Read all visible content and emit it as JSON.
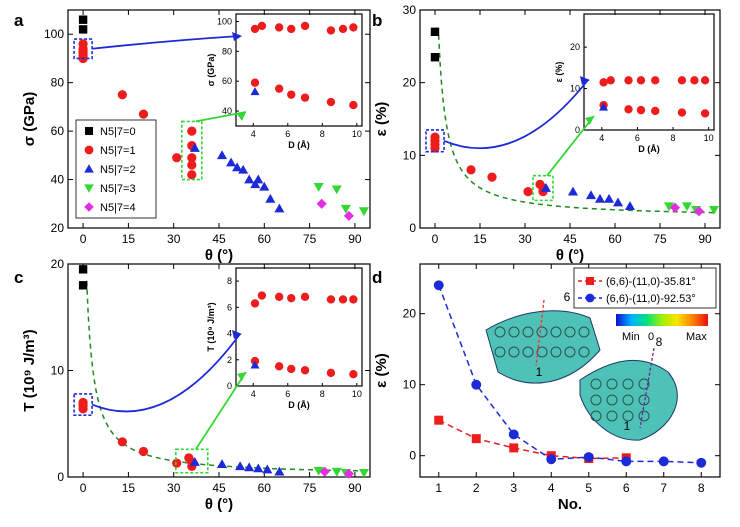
{
  "chart_data": [
    {
      "panel": "a",
      "type": "scatter",
      "xlabel": "θ (°)",
      "ylabel": "σ (GPa)",
      "xlim": [
        -5,
        95
      ],
      "ylim": [
        20,
        110
      ],
      "xticks": [
        "0",
        "15",
        "30",
        "45",
        "60",
        "75",
        "90"
      ],
      "yticks": [
        "20",
        "40",
        "60",
        "80",
        "100"
      ],
      "legend": "bottom-left",
      "series": [
        {
          "name": "N5|7=0",
          "marker": "square",
          "color": "#000000",
          "points": [
            [
              0,
              106
            ],
            [
              0,
              102
            ]
          ]
        },
        {
          "name": "N5|7=1",
          "marker": "circle",
          "color": "#ee1c1c",
          "points": [
            [
              0,
              96
            ],
            [
              0,
              94
            ],
            [
              0,
              93
            ],
            [
              0,
              92
            ],
            [
              0,
              91
            ],
            [
              0,
              90
            ],
            [
              13,
              75
            ],
            [
              20,
              67
            ],
            [
              31,
              49
            ],
            [
              36,
              60
            ],
            [
              36,
              54
            ],
            [
              36,
              49
            ],
            [
              36,
              46
            ],
            [
              36,
              42
            ]
          ]
        },
        {
          "name": "N5|7=2",
          "marker": "triangle",
          "color": "#1c2ad8",
          "points": [
            [
              37,
              53
            ],
            [
              46,
              50
            ],
            [
              49,
              47
            ],
            [
              51,
              45
            ],
            [
              53,
              44
            ],
            [
              55,
              40
            ],
            [
              57,
              38
            ],
            [
              58,
              40
            ],
            [
              60,
              37
            ],
            [
              62,
              32
            ],
            [
              65,
              28
            ]
          ]
        },
        {
          "name": "N5|7=3",
          "marker": "triangle-down",
          "color": "#33d633",
          "points": [
            [
              78,
              37
            ],
            [
              84,
              36
            ],
            [
              87,
              28
            ],
            [
              93,
              27
            ]
          ]
        },
        {
          "name": "N5|7=4",
          "marker": "diamond",
          "color": "#e22de2",
          "points": [
            [
              79,
              30
            ],
            [
              88,
              25
            ]
          ]
        }
      ],
      "inset": {
        "xlabel": "D (Å)",
        "ylabel": "σ (GPa)",
        "xlim": [
          3,
          10.3
        ],
        "ylim": [
          30,
          105
        ],
        "xticks": [
          "4",
          "6",
          "8",
          "10"
        ],
        "yticks": [
          "40",
          "60",
          "80",
          "100"
        ],
        "series": [
          {
            "marker": "circle",
            "color": "#ee1c1c",
            "points": [
              [
                4.1,
                95
              ],
              [
                4.5,
                97
              ],
              [
                5.5,
                96
              ],
              [
                6.2,
                95
              ],
              [
                7,
                97
              ],
              [
                8.5,
                94
              ],
              [
                9.2,
                95
              ],
              [
                9.8,
                96
              ],
              [
                4.1,
                59
              ],
              [
                5.5,
                55
              ],
              [
                6.2,
                51
              ],
              [
                7,
                49
              ],
              [
                8.5,
                46
              ],
              [
                9.8,
                44
              ]
            ]
          },
          {
            "marker": "triangle",
            "color": "#1c2ad8",
            "points": [
              [
                4.1,
                53
              ]
            ]
          }
        ]
      }
    },
    {
      "panel": "b",
      "type": "scatter",
      "xlabel": "θ (°)",
      "ylabel": "ε (%)",
      "xlim": [
        -5,
        95
      ],
      "ylim": [
        0,
        30
      ],
      "xticks": [
        "0",
        "15",
        "30",
        "45",
        "60",
        "75",
        "90"
      ],
      "yticks": [
        "0",
        "10",
        "20",
        "30"
      ],
      "fit": "dashed-green-decay",
      "series": [
        {
          "marker": "square",
          "color": "#000000",
          "points": [
            [
              0,
              27
            ],
            [
              0,
              23.5
            ]
          ]
        },
        {
          "marker": "circle",
          "color": "#ee1c1c",
          "points": [
            [
              0,
              12.5
            ],
            [
              0,
              12
            ],
            [
              0,
              11.5
            ],
            [
              0,
              11
            ],
            [
              12,
              8
            ],
            [
              19,
              7
            ],
            [
              31,
              5
            ],
            [
              35,
              6
            ],
            [
              36,
              5.5
            ],
            [
              36,
              5
            ]
          ]
        },
        {
          "marker": "triangle",
          "color": "#1c2ad8",
          "points": [
            [
              37,
              5.5
            ],
            [
              46,
              5
            ],
            [
              52,
              4.5
            ],
            [
              55,
              4
            ],
            [
              58,
              4
            ],
            [
              61,
              3.5
            ],
            [
              65,
              3
            ]
          ]
        },
        {
          "marker": "triangle-down",
          "color": "#33d633",
          "points": [
            [
              78,
              3
            ],
            [
              84,
              3
            ],
            [
              87,
              2.5
            ],
            [
              93,
              2.5
            ]
          ]
        },
        {
          "marker": "diamond",
          "color": "#e22de2",
          "points": [
            [
              80,
              2.8
            ],
            [
              88,
              2.3
            ]
          ]
        }
      ],
      "inset": {
        "xlabel": "D (Å)",
        "ylabel": "ε (%)",
        "xlim": [
          3,
          10.3
        ],
        "ylim": [
          0,
          28
        ],
        "xticks": [
          "4",
          "6",
          "8",
          "10"
        ],
        "yticks": [
          "0",
          "10",
          "20"
        ],
        "series": [
          {
            "marker": "circle",
            "color": "#ee1c1c",
            "points": [
              [
                4.1,
                11.5
              ],
              [
                4.5,
                12
              ],
              [
                5.5,
                12
              ],
              [
                6.2,
                12
              ],
              [
                7,
                12
              ],
              [
                8.5,
                12
              ],
              [
                9.2,
                12
              ],
              [
                9.8,
                12
              ],
              [
                4.1,
                6
              ],
              [
                5.5,
                5
              ],
              [
                6.2,
                4.8
              ],
              [
                7,
                4.6
              ],
              [
                8.5,
                4.2
              ],
              [
                9.8,
                4
              ]
            ]
          },
          {
            "marker": "triangle",
            "color": "#1c2ad8",
            "points": [
              [
                4.1,
                5.5
              ]
            ]
          }
        ]
      }
    },
    {
      "panel": "c",
      "type": "scatter",
      "xlabel": "θ (°)",
      "ylabel": "T (10⁹ J/m³)",
      "xlim": [
        -5,
        95
      ],
      "ylim": [
        0,
        20
      ],
      "xticks": [
        "0",
        "15",
        "30",
        "45",
        "60",
        "75",
        "90"
      ],
      "yticks": [
        "0",
        "10",
        "20"
      ],
      "fit": "dashed-green-decay",
      "series": [
        {
          "marker": "square",
          "color": "#000000",
          "points": [
            [
              0,
              19.5
            ],
            [
              0,
              18
            ]
          ]
        },
        {
          "marker": "circle",
          "color": "#ee1c1c",
          "points": [
            [
              0,
              7
            ],
            [
              0,
              6.7
            ],
            [
              0,
              6.4
            ],
            [
              13,
              3.3
            ],
            [
              20,
              2.4
            ],
            [
              31,
              1.3
            ],
            [
              35,
              1.8
            ],
            [
              36,
              1.4
            ],
            [
              36,
              1
            ]
          ]
        },
        {
          "marker": "triangle",
          "color": "#1c2ad8",
          "points": [
            [
              37,
              1.4
            ],
            [
              46,
              1.2
            ],
            [
              52,
              1
            ],
            [
              55,
              0.9
            ],
            [
              58,
              0.8
            ],
            [
              61,
              0.7
            ],
            [
              65,
              0.5
            ]
          ]
        },
        {
          "marker": "triangle-down",
          "color": "#33d633",
          "points": [
            [
              78,
              0.6
            ],
            [
              84,
              0.5
            ],
            [
              87,
              0.4
            ],
            [
              93,
              0.4
            ]
          ]
        },
        {
          "marker": "diamond",
          "color": "#e22de2",
          "points": [
            [
              80,
              0.5
            ],
            [
              88,
              0.3
            ]
          ]
        }
      ],
      "inset": {
        "xlabel": "D (Å)",
        "ylabel": "T (10⁹ J/m³)",
        "xlim": [
          3,
          10.3
        ],
        "ylim": [
          0,
          9
        ],
        "xticks": [
          "4",
          "6",
          "8",
          "10"
        ],
        "yticks": [
          "0",
          "2",
          "4",
          "6",
          "8"
        ],
        "series": [
          {
            "marker": "circle",
            "color": "#ee1c1c",
            "points": [
              [
                4.1,
                6.3
              ],
              [
                4.5,
                6.9
              ],
              [
                5.5,
                6.8
              ],
              [
                6.2,
                6.7
              ],
              [
                7,
                6.8
              ],
              [
                8.5,
                6.6
              ],
              [
                9.2,
                6.6
              ],
              [
                9.8,
                6.6
              ],
              [
                4.1,
                1.9
              ],
              [
                5.5,
                1.5
              ],
              [
                6.2,
                1.3
              ],
              [
                7,
                1.2
              ],
              [
                8.5,
                1
              ],
              [
                9.8,
                0.9
              ]
            ]
          },
          {
            "marker": "triangle",
            "color": "#1c2ad8",
            "points": [
              [
                4.1,
                1.6
              ]
            ]
          }
        ]
      }
    },
    {
      "panel": "d",
      "type": "line",
      "xlabel": "No.",
      "ylabel": "ε (%)",
      "xlim": [
        0.5,
        8.5
      ],
      "ylim": [
        -3,
        27
      ],
      "xticks": [
        "1",
        "2",
        "3",
        "4",
        "5",
        "6",
        "7",
        "8"
      ],
      "yticks": [
        "0",
        "10",
        "20"
      ],
      "legend": "top-right",
      "series": [
        {
          "name": "(6,6)-(11,0)-35.81°",
          "marker": "square",
          "color": "#ee1c1c",
          "x": [
            1,
            2,
            3,
            4,
            5,
            6
          ],
          "y": [
            5,
            2.4,
            1.1,
            0,
            -0.4,
            -0.3
          ]
        },
        {
          "name": "(6,6)-(11,0)-92.53°",
          "marker": "circle",
          "color": "#1c2ad8",
          "x": [
            1,
            2,
            3,
            4,
            5,
            6,
            7,
            8
          ],
          "y": [
            24,
            10,
            3,
            -0.5,
            -0.2,
            -0.8,
            -0.8,
            -1
          ]
        }
      ],
      "colorbar": {
        "min_label": "Min",
        "zero_label": "0",
        "max_label": "Max"
      },
      "annotations": [
        "6",
        "1",
        "8",
        "1"
      ]
    }
  ]
}
